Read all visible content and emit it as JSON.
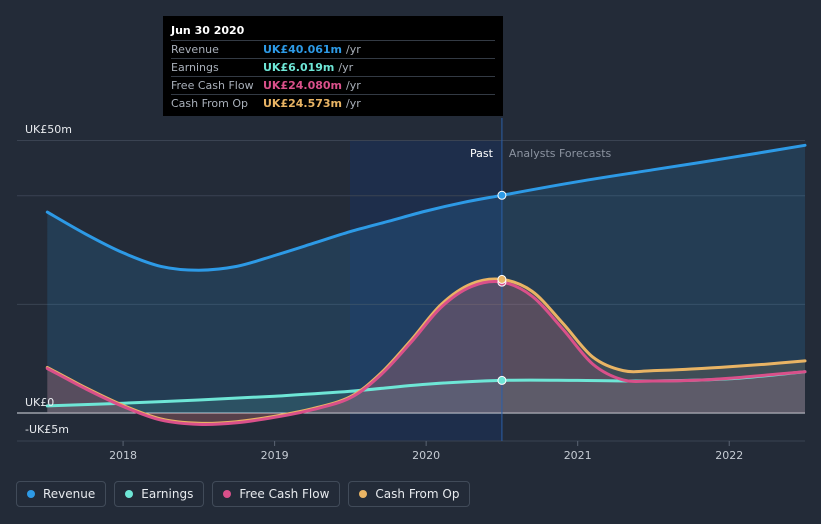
{
  "colors": {
    "background": "#232b38",
    "revenue": "#2d9ae6",
    "earnings": "#6ee6d6",
    "free_cash_flow": "#d9508a",
    "cash_from_op": "#e9b464",
    "past_region": "#1d2f4f"
  },
  "tooltip": {
    "date": "Jun 30 2020",
    "rows": [
      {
        "label": "Revenue",
        "value": "UK£40.061m",
        "unit": "/yr",
        "color": "#2d9ae6"
      },
      {
        "label": "Earnings",
        "value": "UK£6.019m",
        "unit": "/yr",
        "color": "#6ee6d6"
      },
      {
        "label": "Free Cash Flow",
        "value": "UK£24.080m",
        "unit": "/yr",
        "color": "#d9508a"
      },
      {
        "label": "Cash From Op",
        "value": "UK£24.573m",
        "unit": "/yr",
        "color": "#e9b464"
      }
    ]
  },
  "legend": [
    {
      "label": "Revenue",
      "color": "#2d9ae6"
    },
    {
      "label": "Earnings",
      "color": "#6ee6d6"
    },
    {
      "label": "Free Cash Flow",
      "color": "#d9508a"
    },
    {
      "label": "Cash From Op",
      "color": "#e9b464"
    }
  ],
  "chart_data": {
    "type": "line",
    "y_labels": [
      "UK£50m",
      "UK£0",
      "-UK£5m"
    ],
    "x_tick_labels": [
      "2018",
      "2019",
      "2020",
      "2021",
      "2022"
    ],
    "x_ticks": [
      2018.0,
      2019.0,
      2020.0,
      2021.0,
      2022.0
    ],
    "xlim": [
      2017.3,
      2022.5
    ],
    "ylim": [
      -5,
      50
    ],
    "divider_x": 2020.5,
    "past_label": "Past",
    "forecast_label": "Analysts Forecasts",
    "series": [
      {
        "name": "Revenue",
        "key": "revenue",
        "x": [
          2017.5,
          2017.75,
          2018.0,
          2018.25,
          2018.5,
          2018.75,
          2019.0,
          2019.25,
          2019.5,
          2019.75,
          2020.0,
          2020.25,
          2020.5,
          2021.0,
          2021.5,
          2022.0,
          2022.5
        ],
        "y": [
          37,
          33,
          29.5,
          27,
          26.3,
          27,
          29,
          31.2,
          33.4,
          35.3,
          37.2,
          38.8,
          40.1,
          42.6,
          44.8,
          47,
          49.3
        ]
      },
      {
        "name": "Earnings",
        "key": "earnings",
        "x": [
          2017.5,
          2018.0,
          2018.5,
          2019.0,
          2019.5,
          2020.0,
          2020.5,
          2021.0,
          2021.5,
          2022.0,
          2022.5
        ],
        "y": [
          1.3,
          1.8,
          2.4,
          3.1,
          4.0,
          5.3,
          6.0,
          6.0,
          5.9,
          6.3,
          7.6
        ]
      },
      {
        "name": "Free Cash Flow",
        "key": "free_cash_flow",
        "x": [
          2017.5,
          2017.75,
          2018.0,
          2018.25,
          2018.5,
          2018.75,
          2019.0,
          2019.25,
          2019.5,
          2019.7,
          2019.9,
          2020.1,
          2020.3,
          2020.5,
          2020.7,
          2020.9,
          2021.1,
          2021.3,
          2021.5,
          2021.75,
          2022.0,
          2022.25,
          2022.5
        ],
        "y": [
          8.2,
          4.5,
          1.2,
          -1.3,
          -2.1,
          -1.8,
          -0.8,
          0.6,
          2.8,
          7.0,
          13.0,
          19.5,
          23.3,
          24.1,
          21.5,
          15.5,
          9.0,
          6.1,
          5.9,
          6.0,
          6.4,
          7.0,
          7.6
        ]
      },
      {
        "name": "Cash From Op",
        "key": "cash_from_op",
        "x": [
          2017.5,
          2017.75,
          2018.0,
          2018.25,
          2018.5,
          2018.75,
          2019.0,
          2019.25,
          2019.5,
          2019.7,
          2019.9,
          2020.1,
          2020.3,
          2020.5,
          2020.7,
          2020.9,
          2021.1,
          2021.3,
          2021.5,
          2021.75,
          2022.0,
          2022.25,
          2022.5
        ],
        "y": [
          8.4,
          4.7,
          1.4,
          -1.1,
          -1.9,
          -1.6,
          -0.6,
          0.8,
          3.0,
          7.3,
          13.4,
          20.0,
          23.8,
          24.6,
          22.4,
          16.6,
          10.3,
          7.8,
          7.8,
          8.1,
          8.5,
          9.0,
          9.6
        ]
      }
    ],
    "markers_at_x": 2020.5
  }
}
